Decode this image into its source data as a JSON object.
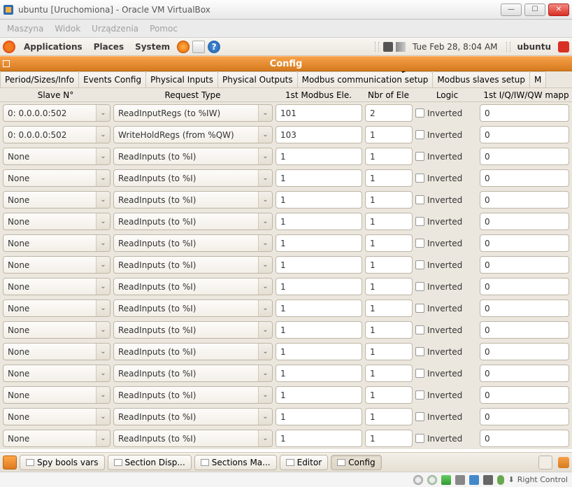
{
  "virtualbox": {
    "title": "ubuntu [Uruchomiona] - Oracle VM VirtualBox",
    "menus": [
      "Maszyna",
      "Widok",
      "Urządzenia",
      "Pomoc"
    ],
    "hostkey": "Right Control"
  },
  "gnome": {
    "menus": {
      "apps": "Applications",
      "places": "Places",
      "system": "System"
    },
    "clock": "Tue Feb 28,  8:04 AM",
    "user": "ubuntu"
  },
  "config_window": {
    "title": "Config",
    "tabs": [
      "Period/Sizes/Info",
      "Events Config",
      "Physical Inputs",
      "Physical Outputs",
      "Modbus communication setup",
      "Modbus slaves setup",
      "M"
    ],
    "columns": {
      "slave": "Slave N°",
      "request": "Request Type",
      "modbus": "1st Modbus Ele.",
      "nbr": "Nbr of Ele",
      "logic": "Logic",
      "map": "1st I/Q/IW/QW mapp"
    },
    "logic_label": "Inverted",
    "rows": [
      {
        "slave": "0: 0.0.0.0:502",
        "req": "ReadInputRegs (to %IW)",
        "mod": "101",
        "nbr": "2",
        "map": "0"
      },
      {
        "slave": "0: 0.0.0.0:502",
        "req": "WriteHoldRegs (from %QW)",
        "mod": "103",
        "nbr": "1",
        "map": "0"
      },
      {
        "slave": "None",
        "req": "ReadInputs (to %I)",
        "mod": "1",
        "nbr": "1",
        "map": "0"
      },
      {
        "slave": "None",
        "req": "ReadInputs (to %I)",
        "mod": "1",
        "nbr": "1",
        "map": "0"
      },
      {
        "slave": "None",
        "req": "ReadInputs (to %I)",
        "mod": "1",
        "nbr": "1",
        "map": "0"
      },
      {
        "slave": "None",
        "req": "ReadInputs (to %I)",
        "mod": "1",
        "nbr": "1",
        "map": "0"
      },
      {
        "slave": "None",
        "req": "ReadInputs (to %I)",
        "mod": "1",
        "nbr": "1",
        "map": "0"
      },
      {
        "slave": "None",
        "req": "ReadInputs (to %I)",
        "mod": "1",
        "nbr": "1",
        "map": "0"
      },
      {
        "slave": "None",
        "req": "ReadInputs (to %I)",
        "mod": "1",
        "nbr": "1",
        "map": "0"
      },
      {
        "slave": "None",
        "req": "ReadInputs (to %I)",
        "mod": "1",
        "nbr": "1",
        "map": "0"
      },
      {
        "slave": "None",
        "req": "ReadInputs (to %I)",
        "mod": "1",
        "nbr": "1",
        "map": "0"
      },
      {
        "slave": "None",
        "req": "ReadInputs (to %I)",
        "mod": "1",
        "nbr": "1",
        "map": "0"
      },
      {
        "slave": "None",
        "req": "ReadInputs (to %I)",
        "mod": "1",
        "nbr": "1",
        "map": "0"
      },
      {
        "slave": "None",
        "req": "ReadInputs (to %I)",
        "mod": "1",
        "nbr": "1",
        "map": "0"
      },
      {
        "slave": "None",
        "req": "ReadInputs (to %I)",
        "mod": "1",
        "nbr": "1",
        "map": "0"
      },
      {
        "slave": "None",
        "req": "ReadInputs (to %I)",
        "mod": "1",
        "nbr": "1",
        "map": "0"
      }
    ]
  },
  "taskbar": {
    "items": [
      {
        "label": "Spy bools vars",
        "active": false
      },
      {
        "label": "Section Disp...",
        "active": false
      },
      {
        "label": "Sections Ma...",
        "active": false
      },
      {
        "label": "Editor",
        "active": false
      },
      {
        "label": "Config",
        "active": true
      }
    ]
  }
}
